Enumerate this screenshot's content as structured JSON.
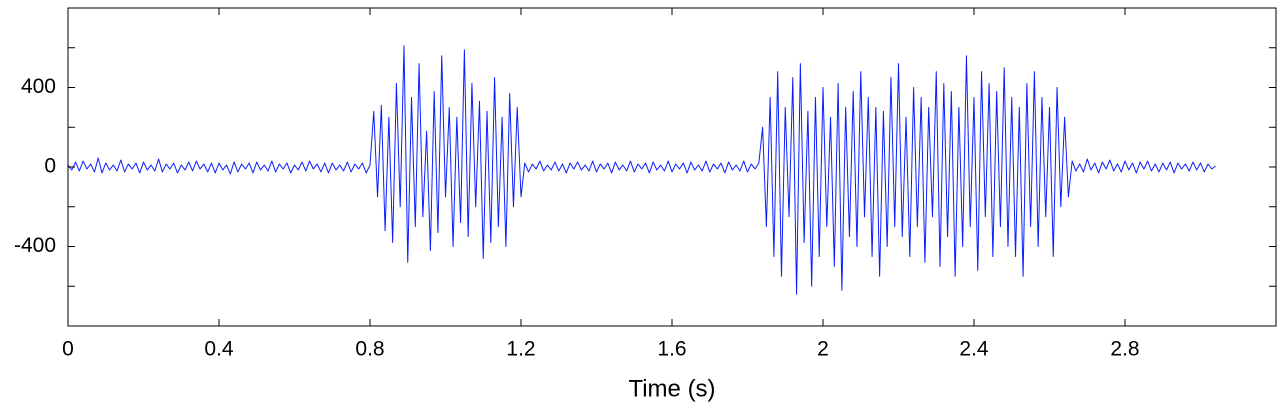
{
  "chart_data": {
    "type": "line",
    "x_label": "Time (s)",
    "color": "#0a1fff",
    "xlim": [
      0,
      3.2
    ],
    "ylim": [
      -800,
      800
    ],
    "xticks": [
      0,
      0.4,
      0.8,
      1.2,
      1.6,
      2,
      2.4,
      2.8
    ],
    "yticks": [
      -400,
      0,
      400
    ],
    "minor_yticks": [
      -600,
      -200,
      200,
      600
    ],
    "x": [
      0,
      0.01,
      0.02,
      0.03,
      0.04,
      0.05,
      0.06,
      0.07,
      0.08,
      0.09,
      0.1,
      0.11,
      0.12,
      0.13,
      0.14,
      0.15,
      0.16,
      0.17,
      0.18,
      0.19,
      0.2,
      0.21,
      0.22,
      0.23,
      0.24,
      0.25,
      0.26,
      0.27,
      0.28,
      0.29,
      0.3,
      0.31,
      0.32,
      0.33,
      0.34,
      0.35,
      0.36,
      0.37,
      0.38,
      0.39,
      0.4,
      0.41,
      0.42,
      0.43,
      0.44,
      0.45,
      0.46,
      0.47,
      0.48,
      0.49,
      0.5,
      0.51,
      0.52,
      0.53,
      0.54,
      0.55,
      0.56,
      0.57,
      0.58,
      0.59,
      0.6,
      0.61,
      0.62,
      0.63,
      0.64,
      0.65,
      0.66,
      0.67,
      0.68,
      0.69,
      0.7,
      0.71,
      0.72,
      0.73,
      0.74,
      0.75,
      0.76,
      0.77,
      0.78,
      0.79,
      0.8,
      0.81,
      0.82,
      0.83,
      0.84,
      0.85,
      0.86,
      0.87,
      0.88,
      0.89,
      0.9,
      0.91,
      0.92,
      0.93,
      0.94,
      0.95,
      0.96,
      0.97,
      0.98,
      0.99,
      1,
      1.01,
      1.02,
      1.03,
      1.04,
      1.05,
      1.06,
      1.07,
      1.08,
      1.09,
      1.1,
      1.11,
      1.12,
      1.13,
      1.14,
      1.15,
      1.16,
      1.17,
      1.18,
      1.19,
      1.2,
      1.21,
      1.22,
      1.23,
      1.24,
      1.25,
      1.26,
      1.27,
      1.28,
      1.29,
      1.3,
      1.31,
      1.32,
      1.33,
      1.34,
      1.35,
      1.36,
      1.37,
      1.38,
      1.39,
      1.4,
      1.41,
      1.42,
      1.43,
      1.44,
      1.45,
      1.46,
      1.47,
      1.48,
      1.49,
      1.5,
      1.51,
      1.52,
      1.53,
      1.54,
      1.55,
      1.56,
      1.57,
      1.58,
      1.59,
      1.6,
      1.61,
      1.62,
      1.63,
      1.64,
      1.65,
      1.66,
      1.67,
      1.68,
      1.69,
      1.7,
      1.71,
      1.72,
      1.73,
      1.74,
      1.75,
      1.76,
      1.77,
      1.78,
      1.79,
      1.8,
      1.81,
      1.82,
      1.83,
      1.84,
      1.85,
      1.86,
      1.87,
      1.88,
      1.89,
      1.9,
      1.91,
      1.92,
      1.93,
      1.94,
      1.95,
      1.96,
      1.97,
      1.98,
      1.99,
      2,
      2.01,
      2.02,
      2.03,
      2.04,
      2.05,
      2.06,
      2.07,
      2.08,
      2.09,
      2.1,
      2.11,
      2.12,
      2.13,
      2.14,
      2.15,
      2.16,
      2.17,
      2.18,
      2.19,
      2.2,
      2.21,
      2.22,
      2.23,
      2.24,
      2.25,
      2.26,
      2.27,
      2.28,
      2.29,
      2.3,
      2.31,
      2.32,
      2.33,
      2.34,
      2.35,
      2.36,
      2.37,
      2.38,
      2.39,
      2.4,
      2.41,
      2.42,
      2.43,
      2.44,
      2.45,
      2.46,
      2.47,
      2.48,
      2.49,
      2.5,
      2.51,
      2.52,
      2.53,
      2.54,
      2.55,
      2.56,
      2.57,
      2.58,
      2.59,
      2.6,
      2.61,
      2.62,
      2.63,
      2.64,
      2.65,
      2.66,
      2.67,
      2.68,
      2.69,
      2.7,
      2.71,
      2.72,
      2.73,
      2.74,
      2.75,
      2.76,
      2.77,
      2.78,
      2.79,
      2.8,
      2.81,
      2.82,
      2.83,
      2.84,
      2.85,
      2.86,
      2.87,
      2.88,
      2.89,
      2.9,
      2.91,
      2.92,
      2.93,
      2.94,
      2.95,
      2.96,
      2.97,
      2.98,
      2.99,
      3,
      3.01,
      3.02,
      3.03,
      3.04
    ],
    "values": [
      10,
      -15,
      25,
      -20,
      30,
      -10,
      15,
      -25,
      45,
      -30,
      20,
      -15,
      10,
      -20,
      35,
      -25,
      15,
      -10,
      20,
      -30,
      25,
      -15,
      10,
      -20,
      40,
      -25,
      15,
      -10,
      20,
      -30,
      10,
      -15,
      25,
      -20,
      30,
      -10,
      15,
      -25,
      20,
      -30,
      20,
      -15,
      10,
      -35,
      25,
      -25,
      15,
      -10,
      20,
      -30,
      25,
      -15,
      10,
      -20,
      30,
      -25,
      15,
      -10,
      20,
      -30,
      10,
      -15,
      25,
      -20,
      30,
      -10,
      15,
      -25,
      20,
      -30,
      20,
      -15,
      10,
      -20,
      25,
      -25,
      15,
      -10,
      20,
      -30,
      10,
      280,
      -150,
      310,
      -320,
      250,
      -380,
      420,
      -200,
      610,
      -480,
      350,
      -300,
      520,
      -250,
      180,
      -420,
      380,
      -330,
      560,
      -150,
      300,
      -400,
      250,
      -280,
      590,
      -350,
      420,
      -200,
      330,
      -460,
      280,
      -380,
      450,
      -300,
      250,
      -400,
      370,
      -200,
      300,
      -150,
      20,
      -25,
      15,
      -10,
      30,
      -20,
      10,
      -15,
      25,
      -20,
      15,
      -30,
      20,
      -10,
      25,
      -15,
      10,
      -20,
      30,
      -25,
      15,
      -10,
      20,
      -30,
      25,
      -15,
      10,
      -20,
      30,
      -25,
      15,
      -10,
      20,
      -30,
      25,
      -15,
      10,
      -20,
      30,
      -25,
      15,
      -10,
      20,
      -30,
      25,
      -15,
      10,
      -20,
      30,
      -25,
      15,
      -10,
      20,
      -30,
      25,
      -15,
      10,
      -20,
      30,
      -25,
      15,
      -10,
      20,
      200,
      -300,
      350,
      -450,
      480,
      -550,
      300,
      -250,
      450,
      -640,
      520,
      -380,
      280,
      -600,
      350,
      -450,
      400,
      -300,
      250,
      -500,
      420,
      -620,
      300,
      -350,
      380,
      -400,
      480,
      -250,
      350,
      -450,
      300,
      -550,
      280,
      -400,
      450,
      -300,
      520,
      -350,
      250,
      -450,
      400,
      -300,
      350,
      -480,
      300,
      -250,
      480,
      -500,
      420,
      -350,
      380,
      -550,
      300,
      -400,
      560,
      -300,
      350,
      -520,
      480,
      -250,
      420,
      -450,
      380,
      -300,
      500,
      -400,
      350,
      -450,
      300,
      -550,
      420,
      -300,
      480,
      -400,
      350,
      -250,
      300,
      -450,
      400,
      -200,
      250,
      -150,
      30,
      -20,
      15,
      -25,
      40,
      -15,
      20,
      -30,
      25,
      -10,
      35,
      -20,
      15,
      -25,
      30,
      -15,
      20,
      -30,
      25,
      -10,
      30,
      -20,
      15,
      -25,
      20,
      -15,
      25,
      -30,
      20,
      -10,
      15,
      -20,
      25,
      -15,
      20,
      -25,
      15,
      -10,
      5
    ]
  }
}
